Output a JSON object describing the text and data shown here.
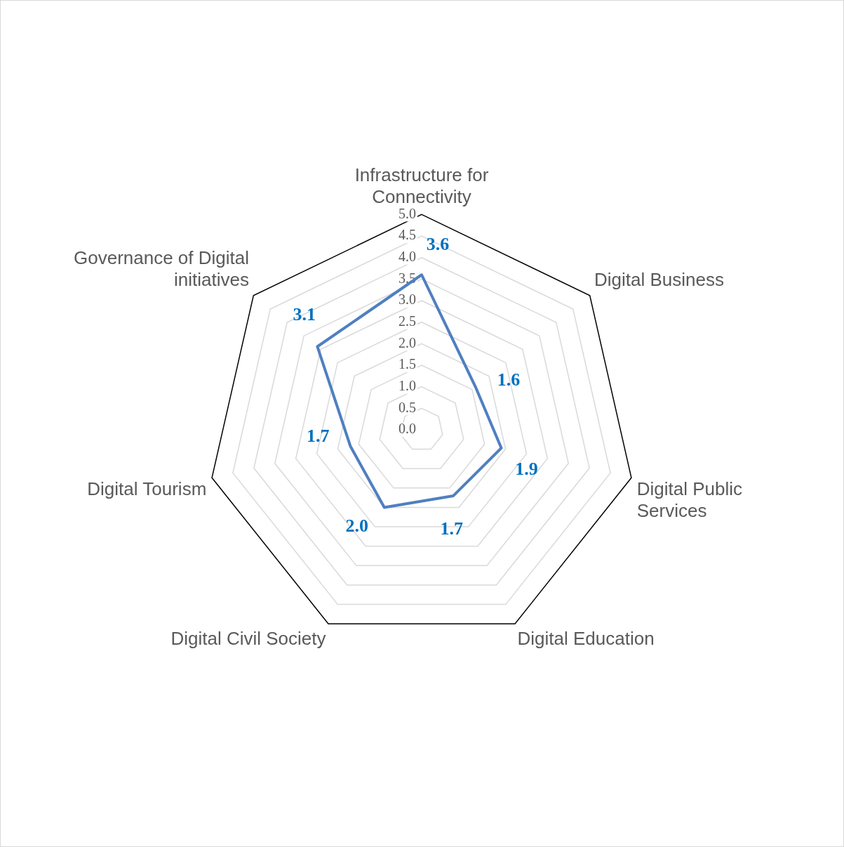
{
  "chart_data": {
    "type": "radar",
    "categories": [
      "Infrastructure for Connectivity",
      "Digital Business",
      "Digital Public Services",
      "Digital Education",
      "Digital Civil Society",
      "Digital Tourism",
      "Governance of Digital initiatives"
    ],
    "series": [
      {
        "color": "#4f7fc0",
        "values": [
          3.6,
          1.6,
          1.9,
          1.7,
          2.0,
          1.7,
          3.1
        ],
        "value_labels": [
          "3.6",
          "1.6",
          "1.9",
          "1.7",
          "2.0",
          "1.7",
          "3.1"
        ]
      }
    ],
    "ylim": [
      0,
      5
    ],
    "yticks": [
      {
        "value": 0,
        "label": "0.0"
      },
      {
        "value": 0.5,
        "label": "0.5"
      },
      {
        "value": 1,
        "label": "1.0"
      },
      {
        "value": 1.5,
        "label": "1.5"
      },
      {
        "value": 2,
        "label": "2.0"
      },
      {
        "value": 2.5,
        "label": "2.5"
      },
      {
        "value": 3,
        "label": "3.0"
      },
      {
        "value": 3.5,
        "label": "3.5"
      },
      {
        "value": 4,
        "label": "4.0"
      },
      {
        "value": 4.5,
        "label": "4.5"
      },
      {
        "value": 5,
        "label": "5.0"
      }
    ],
    "grid": true,
    "legend": false,
    "marker": "none",
    "line_style": "solid"
  }
}
